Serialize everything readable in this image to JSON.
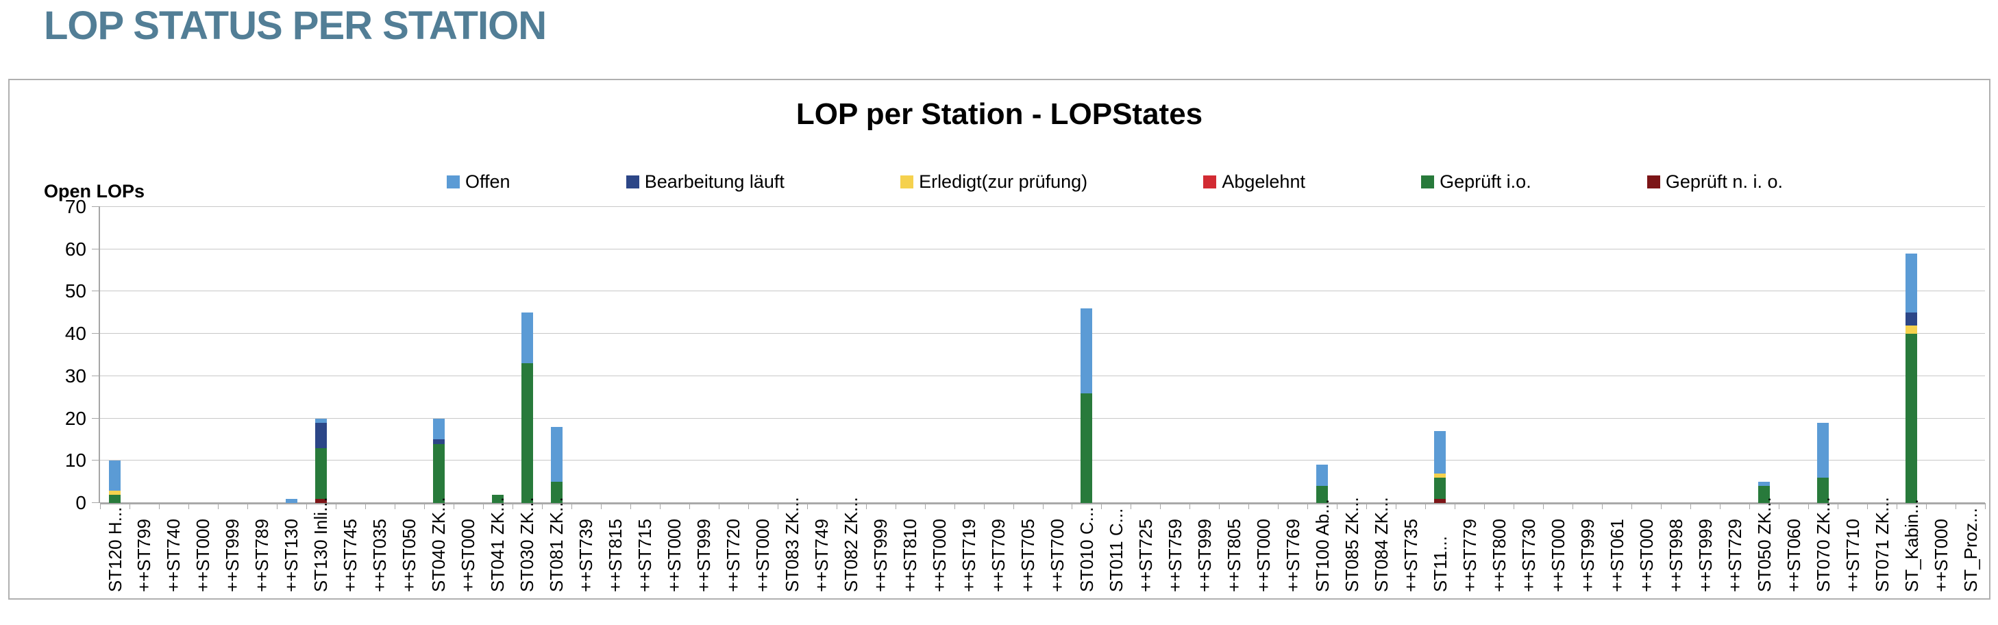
{
  "page": {
    "title": "LOP STATUS PER STATION"
  },
  "chart": {
    "title": "LOP per Station - LOPStates",
    "y_axis_label": "Open LOPs"
  },
  "colors": {
    "page_title": "#527E96",
    "offen": "#5B9BD5",
    "bearbeitung_laeuft": "#2C4687",
    "erledigt": "#F5D14E",
    "abgelehnt": "#D22B33",
    "geprueft_io": "#287A3B",
    "geprueft_nio": "#7C1517",
    "gridline": "#C8C8C8",
    "axis": "#A6A6A6"
  },
  "chart_data": {
    "type": "bar",
    "stacked": true,
    "title": "LOP per Station - LOPStates",
    "xlabel": "",
    "ylabel": "Open LOPs",
    "ylim": [
      0,
      70
    ],
    "yticks": [
      0,
      10,
      20,
      30,
      40,
      50,
      60,
      70
    ],
    "grid": true,
    "legend_position": "top",
    "categories": [
      "ST120 H...",
      "++ST799",
      "++ST740",
      "++ST000",
      "++ST999",
      "++ST789",
      "++ST130",
      "ST130 Inli...",
      "++ST745",
      "++ST035",
      "++ST050",
      "ST040 ZK...",
      "++ST000",
      "ST041 ZK...",
      "ST030 ZK...",
      "ST081 ZK...",
      "++ST739",
      "++ST815",
      "++ST715",
      "++ST000",
      "++ST999",
      "++ST720",
      "++ST000",
      "ST083 ZK...",
      "++ST749",
      "ST082 ZK...",
      "++ST999",
      "++ST810",
      "++ST000",
      "++ST719",
      "++ST709",
      "++ST705",
      "++ST700",
      "ST010 C...",
      "ST011 C...",
      "++ST725",
      "++ST759",
      "++ST999",
      "++ST805",
      "++ST000",
      "++ST769",
      "ST100 Ab...",
      "ST085 ZK...",
      "ST084 ZK...",
      "++ST735",
      "ST11...",
      "++ST779",
      "++ST800",
      "++ST730",
      "++ST000",
      "++ST999",
      "++ST061",
      "++ST000",
      "++ST998",
      "++ST999",
      "++ST729",
      "ST050 ZK...",
      "++ST060",
      "ST070 ZK...",
      "++ST710",
      "ST071 ZK...",
      "ST_Kabin...",
      "++ST000",
      "ST_Proz..."
    ],
    "series": [
      {
        "name": "Offen",
        "color": "#5B9BD5",
        "values": [
          7,
          0,
          0,
          0,
          0,
          0,
          1,
          1,
          0,
          0,
          0,
          5,
          0,
          0,
          12,
          13,
          0,
          0,
          0,
          0,
          0,
          0,
          0,
          0,
          0,
          0,
          0,
          0,
          0,
          0,
          0,
          0,
          0,
          20,
          0,
          0,
          0,
          0,
          0,
          0,
          0,
          5,
          0,
          0,
          0,
          10,
          0,
          0,
          0,
          0,
          0,
          0,
          0,
          0,
          0,
          0,
          1,
          0,
          13,
          0,
          0,
          14,
          0,
          0
        ]
      },
      {
        "name": "Bearbeitung läuft",
        "color": "#2C4687",
        "values": [
          0,
          0,
          0,
          0,
          0,
          0,
          0,
          6,
          0,
          0,
          0,
          1,
          0,
          0,
          0,
          0,
          0,
          0,
          0,
          0,
          0,
          0,
          0,
          0,
          0,
          0,
          0,
          0,
          0,
          0,
          0,
          0,
          0,
          0,
          0,
          0,
          0,
          0,
          0,
          0,
          0,
          0,
          0,
          0,
          0,
          0,
          0,
          0,
          0,
          0,
          0,
          0,
          0,
          0,
          0,
          0,
          0,
          0,
          0,
          0,
          0,
          3,
          0,
          0
        ]
      },
      {
        "name": "Erledigt(zur prüfung)",
        "color": "#F5D14E",
        "values": [
          1,
          0,
          0,
          0,
          0,
          0,
          0,
          0,
          0,
          0,
          0,
          0,
          0,
          0,
          0,
          0,
          0,
          0,
          0,
          0,
          0,
          0,
          0,
          0,
          0,
          0,
          0,
          0,
          0,
          0,
          0,
          0,
          0,
          0,
          0,
          0,
          0,
          0,
          0,
          0,
          0,
          0,
          0,
          0,
          0,
          1,
          0,
          0,
          0,
          0,
          0,
          0,
          0,
          0,
          0,
          0,
          0,
          0,
          0,
          0,
          0,
          2,
          0,
          0
        ]
      },
      {
        "name": "Abgelehnt",
        "color": "#D22B33",
        "values": [
          0,
          0,
          0,
          0,
          0,
          0,
          0,
          0,
          0,
          0,
          0,
          0,
          0,
          0,
          0,
          0,
          0,
          0,
          0,
          0,
          0,
          0,
          0,
          0,
          0,
          0,
          0,
          0,
          0,
          0,
          0,
          0,
          0,
          0,
          0,
          0,
          0,
          0,
          0,
          0,
          0,
          0,
          0,
          0,
          0,
          0,
          0,
          0,
          0,
          0,
          0,
          0,
          0,
          0,
          0,
          0,
          0,
          0,
          0,
          0,
          0,
          0,
          0,
          0
        ]
      },
      {
        "name": "Geprüft i.o.",
        "color": "#287A3B",
        "values": [
          2,
          0,
          0,
          0,
          0,
          0,
          0,
          12,
          0,
          0,
          0,
          14,
          0,
          2,
          33,
          5,
          0,
          0,
          0,
          0,
          0,
          0,
          0,
          0,
          0,
          0,
          0,
          0,
          0,
          0,
          0,
          0,
          0,
          26,
          0,
          0,
          0,
          0,
          0,
          0,
          0,
          4,
          0,
          0,
          0,
          5,
          0,
          0,
          0,
          0,
          0,
          0,
          0,
          0,
          0,
          0,
          4,
          0,
          6,
          0,
          0,
          40,
          0,
          0
        ]
      },
      {
        "name": "Geprüft n. i. o.",
        "color": "#7C1517",
        "values": [
          0,
          0,
          0,
          0,
          0,
          0,
          0,
          1,
          0,
          0,
          0,
          0,
          0,
          0,
          0,
          0,
          0,
          0,
          0,
          0,
          0,
          0,
          0,
          0,
          0,
          0,
          0,
          0,
          0,
          0,
          0,
          0,
          0,
          0,
          0,
          0,
          0,
          0,
          0,
          0,
          0,
          0,
          0,
          0,
          0,
          1,
          0,
          0,
          0,
          0,
          0,
          0,
          0,
          0,
          0,
          0,
          0,
          0,
          0,
          0,
          0,
          0,
          0,
          0
        ]
      }
    ],
    "stack_order_bottom_to_top": [
      "Geprüft n. i. o.",
      "Geprüft i.o.",
      "Abgelehnt",
      "Erledigt(zur prüfung)",
      "Bearbeitung läuft",
      "Offen"
    ]
  }
}
